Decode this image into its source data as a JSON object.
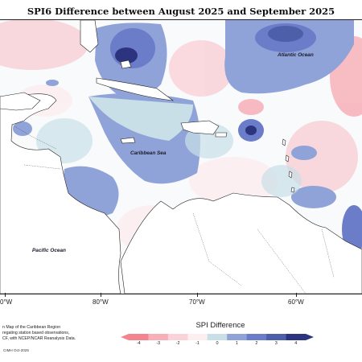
{
  "title": "SPI6 Difference between August 2025 and September 2025",
  "places": {
    "atlantic": "Atlantic Ocean",
    "caribbean": "Caribbean Sea",
    "pacific": "Pacific Ocean"
  },
  "longitudes": [
    "80°W",
    "70°W",
    "60°W"
  ],
  "left_lon_fragment": "0°W",
  "notes": {
    "line1": "n Map of the Caribbean Region",
    "line2": "regating station based observations,",
    "line3": "CF, with NCEP/NCAR Reanalysis Data."
  },
  "credit": "CIMH Oct-2025",
  "legend": {
    "title": "SPI Difference",
    "ticks": [
      "-4",
      "-3",
      "-2",
      "-1",
      "0",
      "1",
      "2",
      "3",
      "4"
    ],
    "colors": [
      "#f4848f",
      "#f8b0b8",
      "#fad3d8",
      "#fdeef0",
      "#c9dfe8",
      "#8fa3d8",
      "#6b7cc9",
      "#4d5fa8",
      "#2c3480"
    ]
  }
}
